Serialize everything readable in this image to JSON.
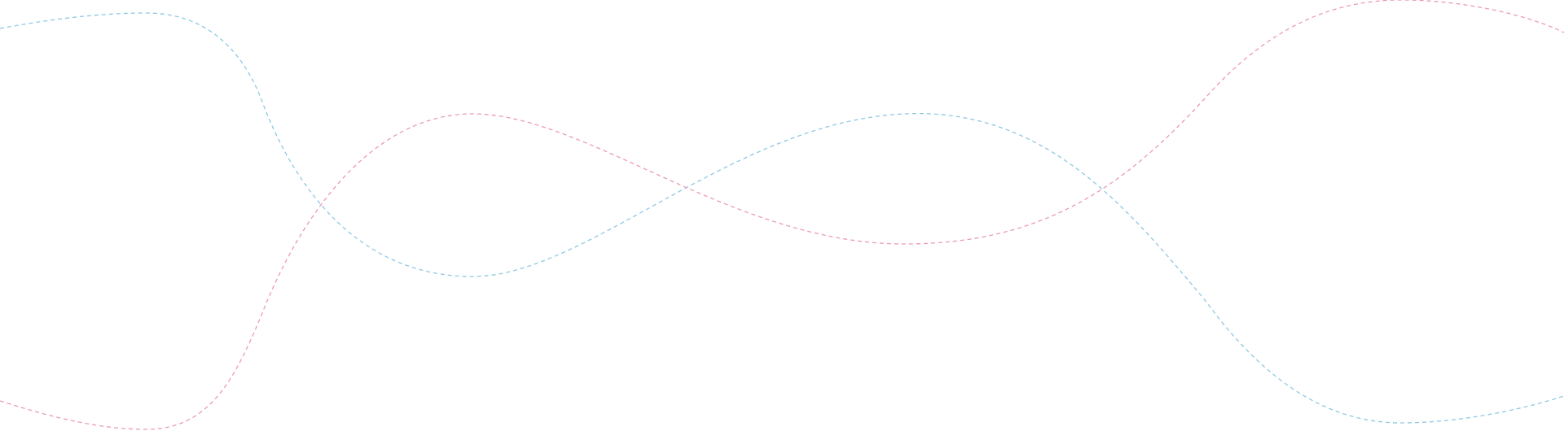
{
  "decoration": {
    "blue_wave_color": "#8fc9e3",
    "pink_wave_color": "#ec9ab5"
  }
}
